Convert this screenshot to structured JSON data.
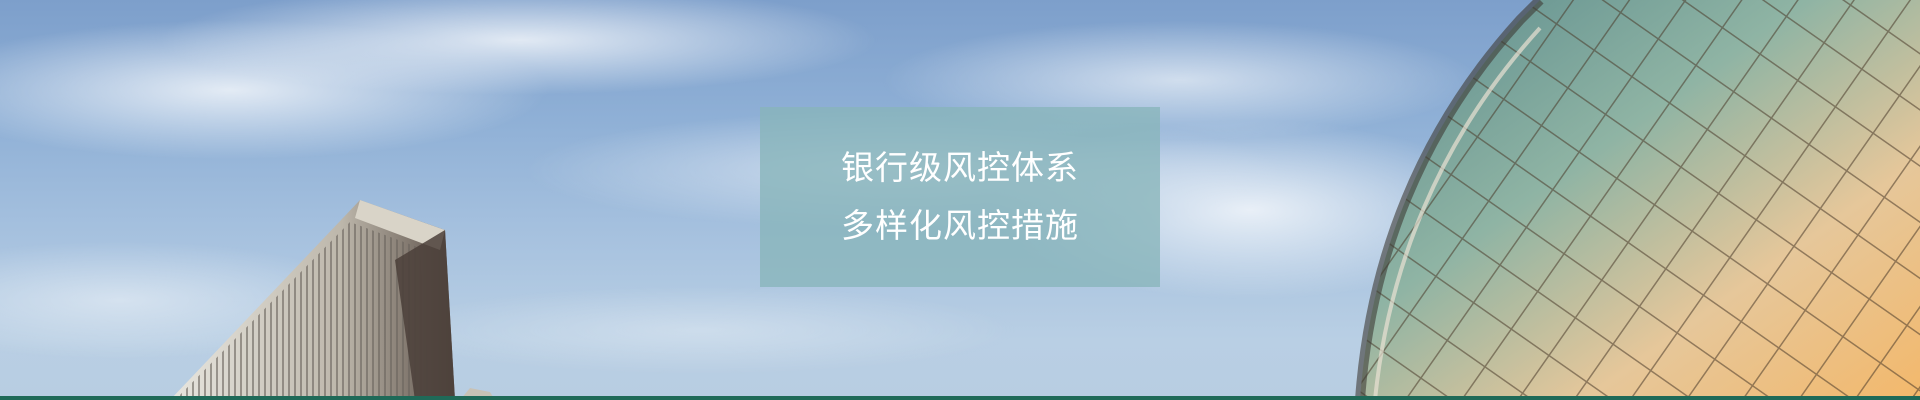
{
  "banner": {
    "lines": [
      "银行级风控体系",
      "多样化风控措施"
    ]
  },
  "colors": {
    "sky_top": "#7d9fcb",
    "sky_bottom": "#b8cde2",
    "overlay": "#88b5ba",
    "accent_bar": "#1f6a58"
  }
}
